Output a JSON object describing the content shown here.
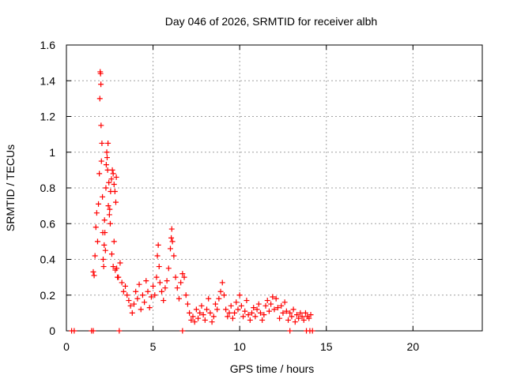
{
  "chart_data": {
    "type": "scatter",
    "title": "Day 046 of 2026, SRMTID for receiver albh",
    "xlabel": "GPS time / hours",
    "ylabel": "SRMTID / TECUs",
    "xlim": [
      0,
      24
    ],
    "ylim": [
      0,
      1.6
    ],
    "xticks": [
      0,
      5,
      10,
      15,
      20
    ],
    "yticks": [
      0,
      0.2,
      0.4,
      0.6,
      0.8,
      1,
      1.2,
      1.4,
      1.6
    ],
    "xtick_labels": [
      "0",
      "5",
      "10",
      "15",
      "20"
    ],
    "ytick_labels": [
      "0",
      "0.2",
      "0.4",
      "0.6",
      "0.8",
      "1",
      "1.2",
      "1.4",
      "1.6"
    ],
    "grid": true,
    "marker": "+",
    "marker_color": "#ff0000",
    "series": [
      {
        "name": "SRMTID",
        "points": [
          [
            0.3,
            0.0
          ],
          [
            0.45,
            0.0
          ],
          [
            1.45,
            0.0
          ],
          [
            1.55,
            0.0
          ],
          [
            3.05,
            0.0
          ],
          [
            6.7,
            0.0
          ],
          [
            12.9,
            0.0
          ],
          [
            13.85,
            0.0
          ],
          [
            14.05,
            0.0
          ],
          [
            14.2,
            0.0
          ],
          [
            1.55,
            0.33
          ],
          [
            1.6,
            0.31
          ],
          [
            1.65,
            0.42
          ],
          [
            1.7,
            0.58
          ],
          [
            1.75,
            0.66
          ],
          [
            1.8,
            0.5
          ],
          [
            1.85,
            0.71
          ],
          [
            1.9,
            0.88
          ],
          [
            1.93,
            1.3
          ],
          [
            1.95,
            1.45
          ],
          [
            1.97,
            1.44
          ],
          [
            1.99,
            1.38
          ],
          [
            2.0,
            1.15
          ],
          [
            2.02,
            0.95
          ],
          [
            2.05,
            1.05
          ],
          [
            2.08,
            0.75
          ],
          [
            2.1,
            0.55
          ],
          [
            2.12,
            0.4
          ],
          [
            2.15,
            0.36
          ],
          [
            2.18,
            0.48
          ],
          [
            2.2,
            0.62
          ],
          [
            2.22,
            0.55
          ],
          [
            2.25,
            0.45
          ],
          [
            2.28,
            0.8
          ],
          [
            2.3,
            0.93
          ],
          [
            2.33,
            1.0
          ],
          [
            2.35,
            0.97
          ],
          [
            2.38,
            0.9
          ],
          [
            2.4,
            1.05
          ],
          [
            2.42,
            0.7
          ],
          [
            2.45,
            0.83
          ],
          [
            2.48,
            0.65
          ],
          [
            2.5,
            0.68
          ],
          [
            2.53,
            0.6
          ],
          [
            2.55,
            0.78
          ],
          [
            2.6,
            0.85
          ],
          [
            2.65,
            0.9
          ],
          [
            2.7,
            0.88
          ],
          [
            2.75,
            0.82
          ],
          [
            2.8,
            0.78
          ],
          [
            2.85,
            0.72
          ],
          [
            2.88,
            0.86
          ],
          [
            2.62,
            0.43
          ],
          [
            2.7,
            0.36
          ],
          [
            2.75,
            0.5
          ],
          [
            2.82,
            0.34
          ],
          [
            2.9,
            0.35
          ],
          [
            2.95,
            0.3
          ],
          [
            3.0,
            0.3
          ],
          [
            3.1,
            0.38
          ],
          [
            3.2,
            0.27
          ],
          [
            3.3,
            0.22
          ],
          [
            3.4,
            0.25
          ],
          [
            3.5,
            0.2
          ],
          [
            3.6,
            0.17
          ],
          [
            3.7,
            0.14
          ],
          [
            3.8,
            0.1
          ],
          [
            3.9,
            0.15
          ],
          [
            4.0,
            0.22
          ],
          [
            4.1,
            0.18
          ],
          [
            4.2,
            0.26
          ],
          [
            4.3,
            0.12
          ],
          [
            4.4,
            0.2
          ],
          [
            4.5,
            0.16
          ],
          [
            4.6,
            0.28
          ],
          [
            4.7,
            0.22
          ],
          [
            4.8,
            0.13
          ],
          [
            4.9,
            0.19
          ],
          [
            5.0,
            0.25
          ],
          [
            5.1,
            0.2
          ],
          [
            5.2,
            0.3
          ],
          [
            5.25,
            0.42
          ],
          [
            5.3,
            0.48
          ],
          [
            5.35,
            0.36
          ],
          [
            5.4,
            0.27
          ],
          [
            5.5,
            0.22
          ],
          [
            5.6,
            0.17
          ],
          [
            5.7,
            0.24
          ],
          [
            5.8,
            0.28
          ],
          [
            5.9,
            0.35
          ],
          [
            6.0,
            0.46
          ],
          [
            6.05,
            0.52
          ],
          [
            6.08,
            0.57
          ],
          [
            6.12,
            0.5
          ],
          [
            6.2,
            0.42
          ],
          [
            6.3,
            0.3
          ],
          [
            6.4,
            0.24
          ],
          [
            6.5,
            0.18
          ],
          [
            6.6,
            0.27
          ],
          [
            6.7,
            0.32
          ],
          [
            6.8,
            0.3
          ],
          [
            6.9,
            0.2
          ],
          [
            7.0,
            0.15
          ],
          [
            7.1,
            0.1
          ],
          [
            7.2,
            0.06
          ],
          [
            7.3,
            0.08
          ],
          [
            7.4,
            0.05
          ],
          [
            7.5,
            0.12
          ],
          [
            7.6,
            0.07
          ],
          [
            7.7,
            0.1
          ],
          [
            7.8,
            0.14
          ],
          [
            7.9,
            0.09
          ],
          [
            8.0,
            0.06
          ],
          [
            8.1,
            0.12
          ],
          [
            8.2,
            0.18
          ],
          [
            8.3,
            0.1
          ],
          [
            8.4,
            0.05
          ],
          [
            8.5,
            0.08
          ],
          [
            8.6,
            0.15
          ],
          [
            8.7,
            0.12
          ],
          [
            8.8,
            0.18
          ],
          [
            8.9,
            0.22
          ],
          [
            9.0,
            0.27
          ],
          [
            9.1,
            0.2
          ],
          [
            9.2,
            0.12
          ],
          [
            9.3,
            0.08
          ],
          [
            9.4,
            0.1
          ],
          [
            9.5,
            0.14
          ],
          [
            9.6,
            0.07
          ],
          [
            9.7,
            0.1
          ],
          [
            9.8,
            0.16
          ],
          [
            9.9,
            0.12
          ],
          [
            10.0,
            0.2
          ],
          [
            10.1,
            0.14
          ],
          [
            10.2,
            0.08
          ],
          [
            10.3,
            0.11
          ],
          [
            10.4,
            0.17
          ],
          [
            10.5,
            0.09
          ],
          [
            10.6,
            0.06
          ],
          [
            10.7,
            0.1
          ],
          [
            10.8,
            0.13
          ],
          [
            10.9,
            0.08
          ],
          [
            11.0,
            0.12
          ],
          [
            11.1,
            0.15
          ],
          [
            11.2,
            0.1
          ],
          [
            11.3,
            0.06
          ],
          [
            11.4,
            0.09
          ],
          [
            11.5,
            0.14
          ],
          [
            11.6,
            0.17
          ],
          [
            11.7,
            0.11
          ],
          [
            11.8,
            0.15
          ],
          [
            11.9,
            0.19
          ],
          [
            12.0,
            0.12
          ],
          [
            12.1,
            0.18
          ],
          [
            12.2,
            0.13
          ],
          [
            12.3,
            0.07
          ],
          [
            12.4,
            0.14
          ],
          [
            12.5,
            0.1
          ],
          [
            12.6,
            0.16
          ],
          [
            12.7,
            0.11
          ],
          [
            12.8,
            0.06
          ],
          [
            12.9,
            0.1
          ],
          [
            13.0,
            0.08
          ],
          [
            13.1,
            0.12
          ],
          [
            13.2,
            0.05
          ],
          [
            13.3,
            0.09
          ],
          [
            13.4,
            0.07
          ],
          [
            13.5,
            0.1
          ],
          [
            13.6,
            0.08
          ],
          [
            13.7,
            0.06
          ],
          [
            13.8,
            0.1
          ],
          [
            13.9,
            0.08
          ],
          [
            14.0,
            0.07
          ],
          [
            14.1,
            0.09
          ]
        ]
      }
    ]
  }
}
